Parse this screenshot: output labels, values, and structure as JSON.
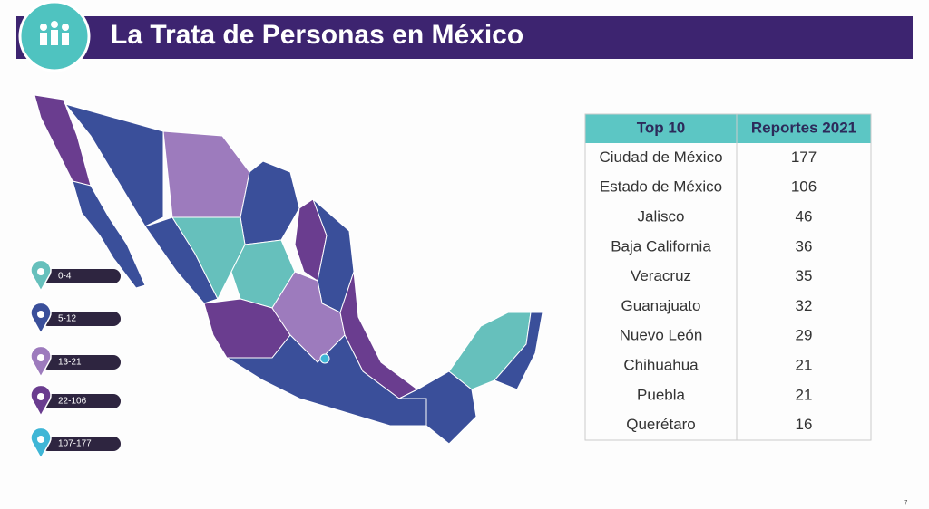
{
  "header": {
    "title": "La Trata de Personas en México"
  },
  "legend": {
    "items": [
      {
        "label": "0-4",
        "color": "#66c0bc"
      },
      {
        "label": "5-12",
        "color": "#3a4f9a"
      },
      {
        "label": "13-21",
        "color": "#9d7bbd"
      },
      {
        "label": "22-106",
        "color": "#6a3d8f"
      },
      {
        "label": "107-177",
        "color": "#3fb6d6"
      }
    ]
  },
  "table": {
    "headers": [
      "Top 10",
      "Reportes  2021"
    ],
    "rows": [
      [
        "Ciudad de México",
        177
      ],
      [
        "Estado de México",
        106
      ],
      [
        "Jalisco",
        46
      ],
      [
        "Baja California",
        36
      ],
      [
        "Veracruz",
        35
      ],
      [
        "Guanajuato",
        32
      ],
      [
        "Nuevo León",
        29
      ],
      [
        "Chihuahua",
        21
      ],
      [
        "Puebla",
        21
      ],
      [
        "Querétaro",
        16
      ]
    ]
  },
  "page_number": 7
}
